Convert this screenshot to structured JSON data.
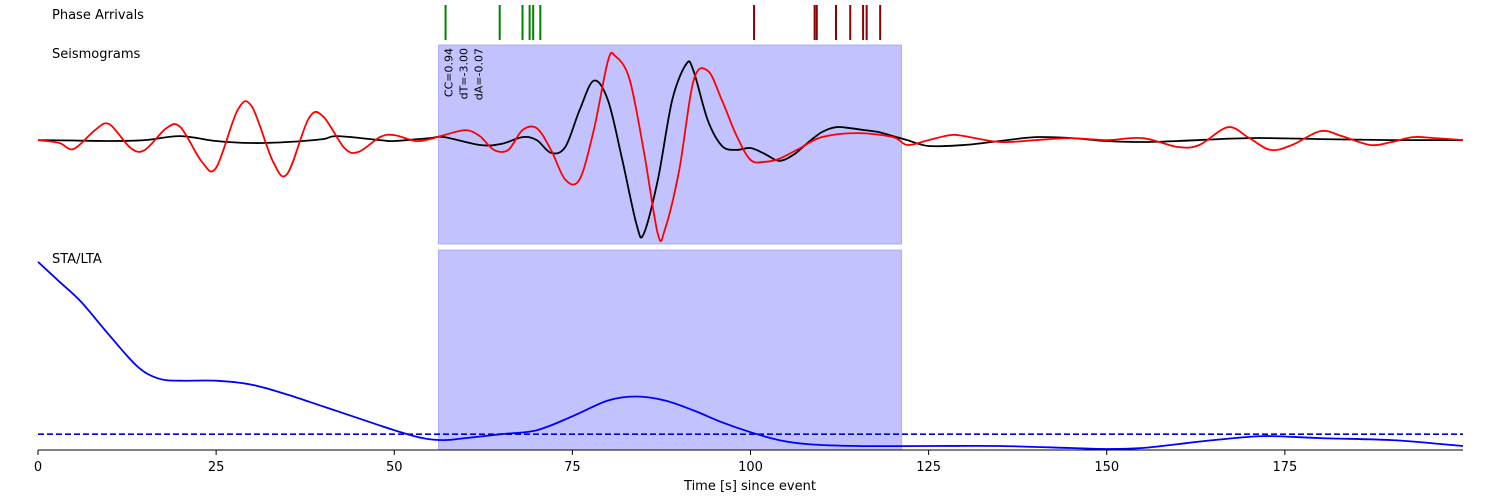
{
  "panels": {
    "phase_title": "Phase Arrivals",
    "seis_title": "Seismograms",
    "sta_title": "STA/LTA"
  },
  "annotations": {
    "cc": "CC=0.94",
    "dt": "dT=-3.00",
    "da": "dA=-0.07"
  },
  "colors": {
    "p_phase": "#008000",
    "s_phase": "#8b0000",
    "trace_obs": "#000000",
    "trace_syn": "#ff0000",
    "window": "#b3b3ff",
    "sta_lta": "#0000ff"
  },
  "chart_data": {
    "type": "line",
    "xlabel": "Time [s] since event",
    "xlim": [
      0,
      200
    ],
    "xticks": [
      0,
      25,
      50,
      75,
      100,
      125,
      150,
      175
    ],
    "window": [
      56.2,
      121.2
    ],
    "phase_arrivals": {
      "green": [
        57.2,
        64.8,
        68.0,
        69.0,
        69.5,
        70.5
      ],
      "darkred": [
        100.5,
        109.0,
        109.3,
        112.0,
        114.0,
        115.8,
        116.3,
        118.2
      ]
    },
    "seismograms": {
      "ylim": [
        -1.05,
        0.95
      ],
      "black": [
        [
          0,
          0.0
        ],
        [
          5,
          -0.005
        ],
        [
          10,
          -0.01
        ],
        [
          15,
          0.0
        ],
        [
          20,
          0.04
        ],
        [
          25,
          -0.01
        ],
        [
          30,
          -0.03
        ],
        [
          35,
          -0.02
        ],
        [
          40,
          0.01
        ],
        [
          42,
          0.04
        ],
        [
          48,
          0.0
        ],
        [
          50,
          -0.01
        ],
        [
          55,
          0.02
        ],
        [
          57,
          0.03
        ],
        [
          62,
          -0.05
        ],
        [
          65,
          -0.04
        ],
        [
          68,
          0.03
        ],
        [
          70,
          0.0
        ],
        [
          72,
          -0.13
        ],
        [
          74,
          -0.07
        ],
        [
          76,
          0.3
        ],
        [
          78,
          0.6
        ],
        [
          80,
          0.4
        ],
        [
          82,
          -0.2
        ],
        [
          84,
          -0.85
        ],
        [
          85,
          -0.95
        ],
        [
          87,
          -0.4
        ],
        [
          89,
          0.4
        ],
        [
          91,
          0.77
        ],
        [
          92,
          0.7
        ],
        [
          94,
          0.2
        ],
        [
          96,
          -0.06
        ],
        [
          98,
          -0.1
        ],
        [
          100,
          -0.08
        ],
        [
          102,
          -0.14
        ],
        [
          104,
          -0.21
        ],
        [
          106,
          -0.15
        ],
        [
          108,
          -0.03
        ],
        [
          110,
          0.08
        ],
        [
          112,
          0.13
        ],
        [
          114,
          0.12
        ],
        [
          116,
          0.1
        ],
        [
          118,
          0.08
        ],
        [
          120,
          0.04
        ],
        [
          122,
          0.0
        ],
        [
          125,
          -0.06
        ],
        [
          130,
          -0.05
        ],
        [
          135,
          -0.01
        ],
        [
          140,
          0.03
        ],
        [
          145,
          0.02
        ],
        [
          150,
          -0.01
        ],
        [
          155,
          -0.02
        ],
        [
          160,
          -0.01
        ],
        [
          170,
          0.02
        ],
        [
          180,
          0.01
        ],
        [
          190,
          0.0
        ],
        [
          200,
          0.0
        ]
      ],
      "red": [
        [
          0,
          0.0
        ],
        [
          3,
          -0.03
        ],
        [
          5,
          -0.09
        ],
        [
          8,
          0.1
        ],
        [
          10,
          0.16
        ],
        [
          13,
          -0.08
        ],
        [
          15,
          -0.1
        ],
        [
          18,
          0.12
        ],
        [
          20,
          0.13
        ],
        [
          23,
          -0.22
        ],
        [
          25,
          -0.28
        ],
        [
          28,
          0.3
        ],
        [
          30,
          0.34
        ],
        [
          33,
          -0.22
        ],
        [
          35,
          -0.34
        ],
        [
          38,
          0.22
        ],
        [
          40,
          0.24
        ],
        [
          43,
          -0.08
        ],
        [
          45,
          -0.12
        ],
        [
          48,
          0.03
        ],
        [
          50,
          0.05
        ],
        [
          53,
          -0.01
        ],
        [
          55,
          0.01
        ],
        [
          57,
          0.05
        ],
        [
          60,
          0.1
        ],
        [
          62,
          0.04
        ],
        [
          64,
          -0.1
        ],
        [
          66,
          -0.1
        ],
        [
          68,
          0.1
        ],
        [
          70,
          0.12
        ],
        [
          72,
          -0.1
        ],
        [
          74,
          -0.4
        ],
        [
          76,
          -0.4
        ],
        [
          78,
          0.1
        ],
        [
          80,
          0.8
        ],
        [
          81,
          0.85
        ],
        [
          83,
          0.62
        ],
        [
          85,
          -0.1
        ],
        [
          87,
          -0.95
        ],
        [
          88,
          -0.9
        ],
        [
          90,
          -0.3
        ],
        [
          92,
          0.6
        ],
        [
          94,
          0.7
        ],
        [
          96,
          0.4
        ],
        [
          98,
          0.05
        ],
        [
          100,
          -0.2
        ],
        [
          102,
          -0.22
        ],
        [
          104,
          -0.19
        ],
        [
          107,
          -0.08
        ],
        [
          110,
          0.03
        ],
        [
          115,
          0.07
        ],
        [
          120,
          0.03
        ],
        [
          122,
          -0.05
        ],
        [
          125,
          0.0
        ],
        [
          128,
          0.05
        ],
        [
          130,
          0.04
        ],
        [
          135,
          -0.02
        ],
        [
          140,
          0.0
        ],
        [
          145,
          0.02
        ],
        [
          150,
          0.0
        ],
        [
          155,
          0.02
        ],
        [
          160,
          -0.07
        ],
        [
          163,
          -0.05
        ],
        [
          167,
          0.13
        ],
        [
          170,
          0.02
        ],
        [
          173,
          -0.1
        ],
        [
          176,
          -0.05
        ],
        [
          180,
          0.09
        ],
        [
          183,
          0.04
        ],
        [
          187,
          -0.05
        ],
        [
          190,
          -0.02
        ],
        [
          193,
          0.03
        ],
        [
          196,
          0.02
        ],
        [
          200,
          0.0
        ]
      ]
    },
    "sta_lta": {
      "ylim": [
        0,
        1
      ],
      "threshold": 0.08,
      "curve": [
        [
          0,
          0.95
        ],
        [
          3,
          0.85
        ],
        [
          6,
          0.75
        ],
        [
          10,
          0.58
        ],
        [
          14,
          0.42
        ],
        [
          17,
          0.36
        ],
        [
          20,
          0.35
        ],
        [
          25,
          0.35
        ],
        [
          30,
          0.33
        ],
        [
          35,
          0.28
        ],
        [
          40,
          0.22
        ],
        [
          45,
          0.16
        ],
        [
          50,
          0.1
        ],
        [
          54,
          0.06
        ],
        [
          57,
          0.05
        ],
        [
          60,
          0.06
        ],
        [
          65,
          0.08
        ],
        [
          70,
          0.1
        ],
        [
          75,
          0.17
        ],
        [
          80,
          0.25
        ],
        [
          84,
          0.27
        ],
        [
          88,
          0.25
        ],
        [
          92,
          0.2
        ],
        [
          96,
          0.14
        ],
        [
          100,
          0.09
        ],
        [
          104,
          0.05
        ],
        [
          108,
          0.03
        ],
        [
          115,
          0.02
        ],
        [
          125,
          0.02
        ],
        [
          135,
          0.02
        ],
        [
          145,
          0.01
        ],
        [
          150,
          0.005
        ],
        [
          155,
          0.01
        ],
        [
          160,
          0.03
        ],
        [
          165,
          0.05
        ],
        [
          172,
          0.07
        ],
        [
          180,
          0.06
        ],
        [
          190,
          0.05
        ],
        [
          197,
          0.03
        ],
        [
          200,
          0.02
        ]
      ]
    }
  }
}
